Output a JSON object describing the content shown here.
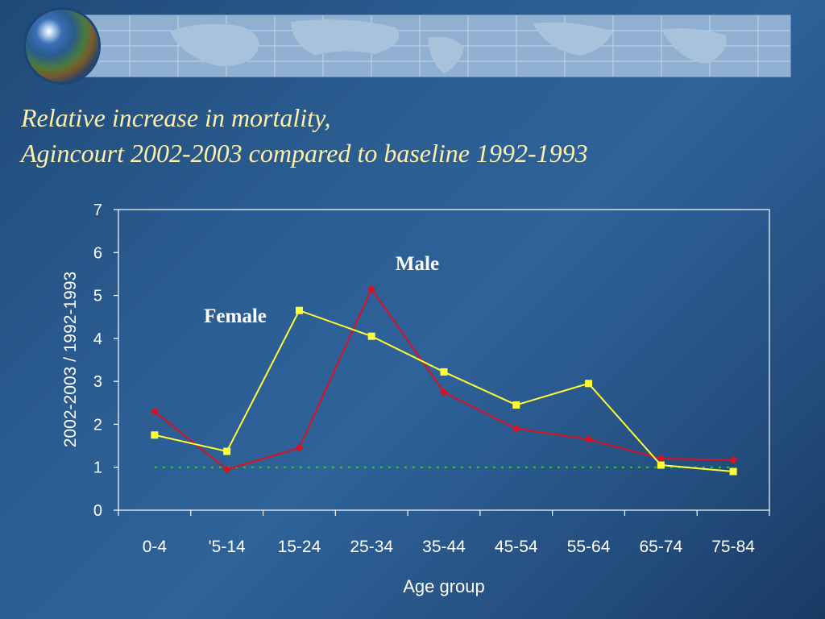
{
  "header": {
    "title_line1": "Relative increase in mortality,",
    "title_line2": "Agincourt 2002-2003 compared to baseline 1992-1993"
  },
  "colors": {
    "female": "#ffff33",
    "male": "#dd1020",
    "baseline": "#33cc33",
    "text": "#ffffff",
    "title": "#fdf0a8"
  },
  "chart_data": {
    "type": "line",
    "categories": [
      "0-4",
      "'5-14",
      "15-24",
      "25-34",
      "35-44",
      "45-54",
      "55-64",
      "65-74",
      "75-84"
    ],
    "series": [
      {
        "name": "Male",
        "color": "#dd1020",
        "marker": "diamond",
        "values": [
          2.3,
          0.95,
          1.45,
          5.15,
          2.75,
          1.9,
          1.65,
          1.2,
          1.17
        ]
      },
      {
        "name": "Female",
        "color": "#ffff33",
        "marker": "square",
        "values": [
          1.75,
          1.37,
          4.65,
          4.05,
          3.22,
          2.45,
          2.95,
          1.05,
          0.9
        ]
      }
    ],
    "reference_line": {
      "value": 1,
      "style": "dotted",
      "color": "#33cc33"
    },
    "xlabel": "Age group",
    "ylabel": "2002-2003 / 1992-1993",
    "ylim": [
      0,
      7
    ],
    "yticks": [
      "0",
      "1",
      "2",
      "3",
      "4",
      "5",
      "6",
      "7"
    ],
    "grid": false,
    "legend": "series labeled directly on chart"
  }
}
